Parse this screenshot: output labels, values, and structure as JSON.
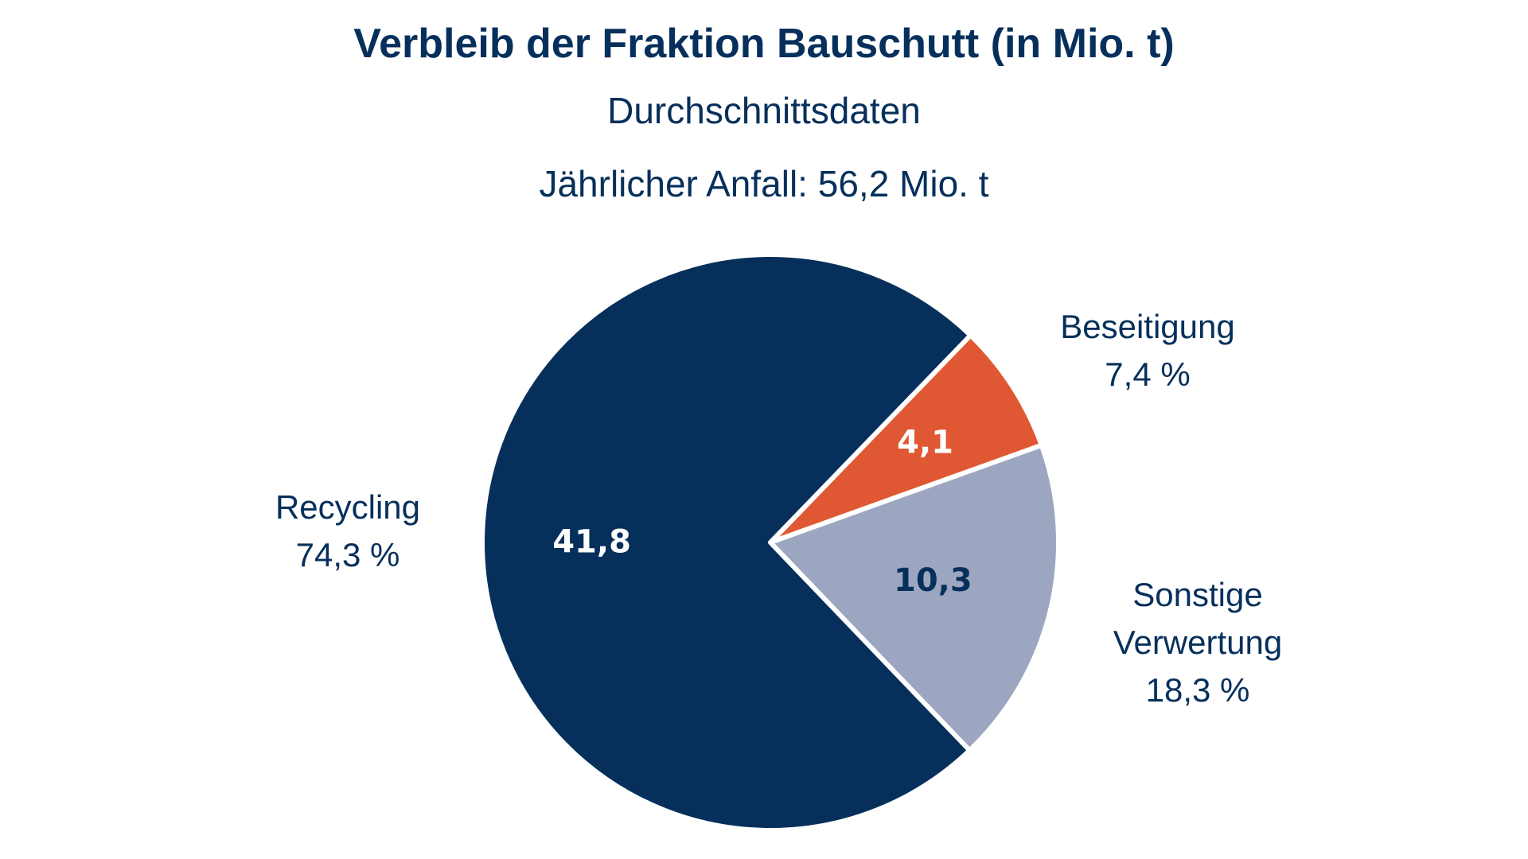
{
  "chart_data": {
    "type": "pie",
    "title": "Verbleib der Fraktion Bauschutt (in Mio. t)",
    "subtitle": "Durchschnittsdaten",
    "annotation": "Jährlicher Anfall: 56,2 Mio. t",
    "unit": "Mio. t",
    "total": 56.2,
    "slices": [
      {
        "key": "recycling",
        "label_lines": [
          "Recycling"
        ],
        "value": 41.8,
        "value_text": "41,8",
        "percent": 74.3,
        "percent_text": "74,3 %",
        "color": "#06305b",
        "value_color": "#ffffff"
      },
      {
        "key": "beseitigung",
        "label_lines": [
          "Beseitigung"
        ],
        "value": 4.1,
        "value_text": "4,1",
        "percent": 7.4,
        "percent_text": "7,4 %",
        "color": "#e05833",
        "value_color": "#ffffff"
      },
      {
        "key": "sonstige-verwertung",
        "label_lines": [
          "Sonstige",
          "Verwertung"
        ],
        "value": 10.3,
        "value_text": "10,3",
        "percent": 18.3,
        "percent_text": "18,3 %",
        "color": "#9da6c1",
        "value_color": "#06305b"
      }
    ]
  },
  "colors": {
    "text": "#06305b",
    "separator": "#ffffff",
    "background": "#ffffff"
  }
}
